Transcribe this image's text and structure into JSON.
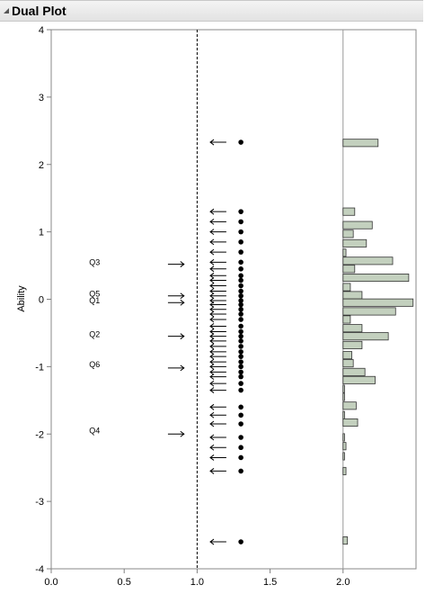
{
  "window": {
    "title": "Dual Plot"
  },
  "chart_data": {
    "type": "scatter",
    "title": "",
    "xlabel": "",
    "ylabel": "Ability",
    "xlim": [
      0.0,
      2.5
    ],
    "ylim": [
      -4,
      4
    ],
    "x_ticks": [
      "0.0",
      "0.5",
      "1.0",
      "1.5",
      "2.0"
    ],
    "y_ticks": [
      "4",
      "3",
      "2",
      "1",
      "0",
      "-1",
      "-2",
      "-3",
      "-4"
    ],
    "reference_line_x": 1.0,
    "divider_x": 2.0,
    "item_labels": [
      {
        "label": "Q3",
        "y": 0.55
      },
      {
        "label": "Q5",
        "y": 0.08
      },
      {
        "label": "Q1",
        "y": -0.02
      },
      {
        "label": "Q2",
        "y": -0.52
      },
      {
        "label": "Q6",
        "y": -0.97
      },
      {
        "label": "Q4",
        "y": -1.95
      }
    ],
    "item_arrows_right": [
      0.52,
      0.05,
      -0.05,
      -0.55,
      -1.02,
      -2.0
    ],
    "item_arrow_x": [
      0.8,
      0.91
    ],
    "person_marker_x": 1.3,
    "person_arrow_x": [
      1.2,
      1.09
    ],
    "person_values": [
      2.33,
      1.3,
      1.15,
      1.0,
      0.85,
      0.7,
      0.55,
      0.45,
      0.35,
      0.28,
      0.2,
      0.12,
      0.05,
      -0.02,
      -0.08,
      -0.15,
      -0.22,
      -0.3,
      -0.4,
      -0.48,
      -0.55,
      -0.62,
      -0.7,
      -0.78,
      -0.85,
      -0.93,
      -1.0,
      -1.08,
      -1.15,
      -1.25,
      -1.35,
      -1.6,
      -1.72,
      -1.85,
      -2.05,
      -2.2,
      -2.35,
      -2.55,
      -3.6
    ],
    "histogram": {
      "x_start": 2.0,
      "bin_height": 0.11,
      "bins": [
        {
          "y": 2.32,
          "value": 0.24
        },
        {
          "y": 1.3,
          "value": 0.08
        },
        {
          "y": 1.1,
          "value": 0.2
        },
        {
          "y": 0.97,
          "value": 0.07
        },
        {
          "y": 0.83,
          "value": 0.16
        },
        {
          "y": 0.69,
          "value": 0.02
        },
        {
          "y": 0.57,
          "value": 0.34
        },
        {
          "y": 0.45,
          "value": 0.08
        },
        {
          "y": 0.32,
          "value": 0.45
        },
        {
          "y": 0.18,
          "value": 0.05
        },
        {
          "y": 0.06,
          "value": 0.13
        },
        {
          "y": -0.05,
          "value": 0.48
        },
        {
          "y": -0.18,
          "value": 0.36
        },
        {
          "y": -0.3,
          "value": 0.05
        },
        {
          "y": -0.43,
          "value": 0.13
        },
        {
          "y": -0.55,
          "value": 0.31
        },
        {
          "y": -0.68,
          "value": 0.13
        },
        {
          "y": -0.83,
          "value": 0.06
        },
        {
          "y": -0.95,
          "value": 0.07
        },
        {
          "y": -1.08,
          "value": 0.15
        },
        {
          "y": -1.2,
          "value": 0.22
        },
        {
          "y": -1.33,
          "value": 0.01
        },
        {
          "y": -1.45,
          "value": 0.01
        },
        {
          "y": -1.58,
          "value": 0.09
        },
        {
          "y": -1.72,
          "value": 0.01
        },
        {
          "y": -1.83,
          "value": 0.1
        },
        {
          "y": -2.05,
          "value": 0.01
        },
        {
          "y": -2.18,
          "value": 0.02
        },
        {
          "y": -2.33,
          "value": 0.01
        },
        {
          "y": -2.55,
          "value": 0.02
        },
        {
          "y": -3.58,
          "value": 0.03
        }
      ]
    },
    "colors": {
      "bar_fill": "#c3d0be",
      "bar_stroke": "#333333",
      "marker": "#000000",
      "axis": "#808080"
    }
  }
}
